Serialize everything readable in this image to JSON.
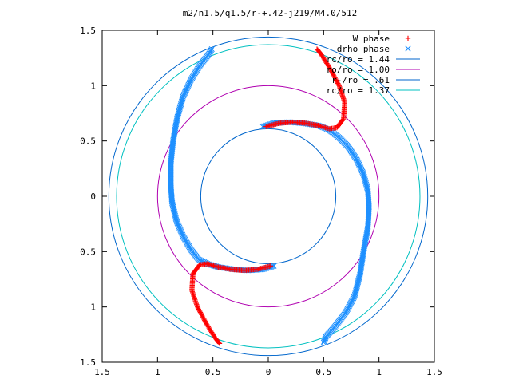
{
  "chart_data": {
    "type": "scatter",
    "title": "m2/n1.5/q1.5/r-+.42-j219/M4.0/512",
    "xlabel": "",
    "ylabel": "",
    "xlim": [
      -1.5,
      1.5
    ],
    "ylim": [
      -1.5,
      1.5
    ],
    "grid": false,
    "legend_position": "top-right",
    "x_ticks": [
      -1.5,
      -1,
      -0.5,
      0,
      0.5,
      1,
      1.5
    ],
    "y_ticks": [
      -1.5,
      -1,
      -0.5,
      0,
      0.5,
      1,
      1.5
    ],
    "x_tick_labels": [
      "1.5",
      "1",
      "0.5",
      "0",
      "0.5",
      "1",
      "1.5"
    ],
    "y_tick_labels": [
      "1.5",
      "1",
      "0.5",
      "0",
      "0.5",
      "1",
      "1.5"
    ],
    "colors": {
      "w_phase": "#ff0000",
      "drho_phase": "#1e90ff",
      "rc_circle": "#0066cc",
      "ro_circle": "#b000b0",
      "rminus_circle": "#0066cc",
      "rc2_circle": "#00c0c0"
    },
    "series": [
      {
        "name": "W phase",
        "marker": "plus",
        "arms": [
          [
            [
              -0.02,
              0.63
            ],
            [
              0.1,
              0.66
            ],
            [
              0.22,
              0.67
            ],
            [
              0.34,
              0.66
            ],
            [
              0.45,
              0.64
            ],
            [
              0.55,
              0.61
            ],
            [
              0.62,
              0.62
            ],
            [
              0.68,
              0.7
            ],
            [
              0.69,
              0.85
            ],
            [
              0.64,
              1.0
            ],
            [
              0.56,
              1.15
            ],
            [
              0.48,
              1.28
            ],
            [
              0.44,
              1.33
            ]
          ],
          [
            [
              0.02,
              -0.63
            ],
            [
              -0.1,
              -0.66
            ],
            [
              -0.22,
              -0.67
            ],
            [
              -0.34,
              -0.66
            ],
            [
              -0.45,
              -0.64
            ],
            [
              -0.55,
              -0.61
            ],
            [
              -0.62,
              -0.62
            ],
            [
              -0.68,
              -0.7
            ],
            [
              -0.69,
              -0.85
            ],
            [
              -0.64,
              -1.0
            ],
            [
              -0.56,
              -1.15
            ],
            [
              -0.48,
              -1.28
            ],
            [
              -0.44,
              -1.33
            ]
          ]
        ]
      },
      {
        "name": "drho phase",
        "marker": "cross",
        "arms": [
          [
            [
              -0.05,
              0.63
            ],
            [
              0.05,
              0.66
            ],
            [
              0.18,
              0.67
            ],
            [
              0.32,
              0.66
            ],
            [
              0.45,
              0.64
            ],
            [
              0.55,
              0.6
            ],
            [
              0.64,
              0.53
            ],
            [
              0.72,
              0.45
            ],
            [
              0.8,
              0.33
            ],
            [
              0.86,
              0.2
            ],
            [
              0.9,
              0.05
            ],
            [
              0.91,
              -0.1
            ],
            [
              0.9,
              -0.28
            ],
            [
              0.86,
              -0.5
            ],
            [
              0.83,
              -0.7
            ],
            [
              0.78,
              -0.9
            ],
            [
              0.7,
              -1.05
            ],
            [
              0.6,
              -1.18
            ],
            [
              0.52,
              -1.27
            ],
            [
              0.5,
              -1.32
            ]
          ],
          [
            [
              0.05,
              -0.63
            ],
            [
              -0.05,
              -0.66
            ],
            [
              -0.18,
              -0.67
            ],
            [
              -0.32,
              -0.66
            ],
            [
              -0.45,
              -0.64
            ],
            [
              -0.55,
              -0.61
            ],
            [
              -0.63,
              -0.57
            ],
            [
              -0.7,
              -0.48
            ],
            [
              -0.77,
              -0.36
            ],
            [
              -0.83,
              -0.22
            ],
            [
              -0.87,
              -0.05
            ],
            [
              -0.88,
              0.1
            ],
            [
              -0.88,
              0.3
            ],
            [
              -0.86,
              0.5
            ],
            [
              -0.82,
              0.72
            ],
            [
              -0.77,
              0.9
            ],
            [
              -0.7,
              1.05
            ],
            [
              -0.62,
              1.18
            ],
            [
              -0.54,
              1.28
            ],
            [
              -0.51,
              1.33
            ]
          ]
        ]
      }
    ],
    "circles": [
      {
        "name": "rc/ro = 1.44",
        "radius": 1.44,
        "color_key": "rc_circle"
      },
      {
        "name": "ro/ro = 1.00",
        "radius": 1.0,
        "color_key": "ro_circle"
      },
      {
        "name": "r-/ro = .61",
        "radius": 0.61,
        "color_key": "rminus_circle"
      },
      {
        "name": "rc/ro = 1.37",
        "radius": 1.37,
        "color_key": "rc2_circle"
      }
    ]
  }
}
